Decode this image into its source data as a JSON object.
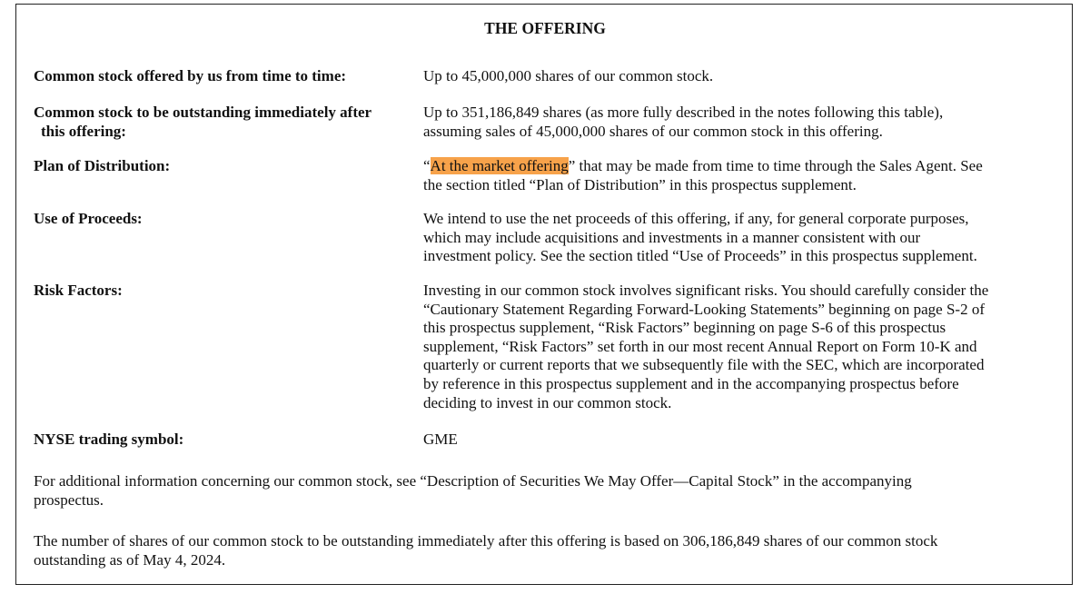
{
  "title": "THE OFFERING",
  "highlight_color": "#f7a24a",
  "rows": [
    {
      "label": [
        "Common stock offered by us from time to time:"
      ],
      "value": [
        "Up to 45,000,000 shares of our common stock."
      ]
    },
    {
      "label": [
        "Common stock to be outstanding immediately after",
        "this offering:"
      ],
      "value": [
        "Up to 351,186,849 shares (as more fully described in the notes following this table),",
        "assuming sales of 45,000,000 shares of our common stock in this offering."
      ]
    },
    {
      "label": [
        "Plan of Distribution:"
      ],
      "value_pre": "“",
      "value_highlight": "At the market offering",
      "value_post": "” that may be made from time to time through the Sales Agent. See",
      "value": [
        "",
        "the section titled “Plan of Distribution” in this prospectus supplement."
      ]
    },
    {
      "label": [
        "Use of Proceeds:"
      ],
      "value": [
        "We intend to use the net proceeds of this offering, if any, for general corporate purposes,",
        "which may include acquisitions and investments in a manner consistent with our",
        "investment policy. See the section titled “Use of Proceeds” in this prospectus supplement."
      ]
    },
    {
      "label": [
        "Risk Factors:"
      ],
      "value": [
        "Investing in our common stock involves significant risks. You should carefully consider the",
        "“Cautionary Statement Regarding Forward-Looking Statements” beginning on page S-2 of",
        "this prospectus supplement, “Risk Factors” beginning on page S-6 of this prospectus",
        "supplement, “Risk Factors” set forth in our most recent Annual Report on Form 10-K and",
        "quarterly or current reports that we subsequently file with the SEC, which are incorporated",
        "by reference in this prospectus supplement and in the accompanying prospectus before",
        "deciding to invest in our common stock."
      ]
    },
    {
      "label": [
        "NYSE trading symbol:"
      ],
      "value": [
        "GME"
      ]
    }
  ],
  "paragraphs": [
    [
      "For additional information concerning our common stock, see “Description of Securities We May Offer—Capital Stock” in the accompanying",
      "prospectus."
    ],
    [
      "The number of shares of our common stock to be outstanding immediately after this offering is based on 306,186,849 shares of our common stock",
      "outstanding as of May 4, 2024."
    ]
  ]
}
